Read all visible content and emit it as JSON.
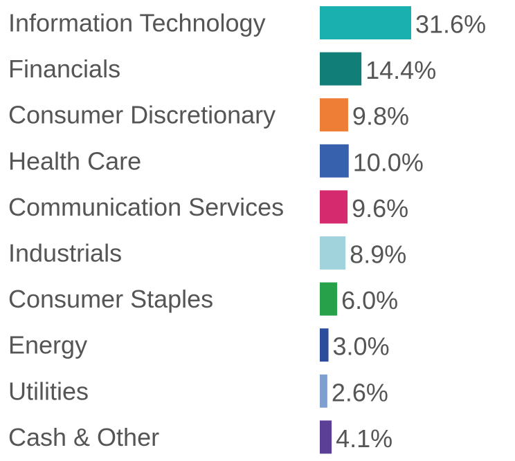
{
  "chart_data": {
    "type": "bar",
    "orientation": "horizontal",
    "title": "",
    "xlabel": "",
    "ylabel": "",
    "grid": false,
    "legend": "none",
    "xlim": [
      0,
      31.6
    ],
    "categories": [
      "Information Technology",
      "Financials",
      "Consumer Discretionary",
      "Health Care",
      "Communication Services",
      "Industrials",
      "Consumer Staples",
      "Energy",
      "Utilities",
      "Cash & Other"
    ],
    "values": [
      31.6,
      14.4,
      9.8,
      10.0,
      9.6,
      8.9,
      6.0,
      3.0,
      2.6,
      4.1
    ],
    "value_labels": [
      "31.6%",
      "14.4%",
      "9.8%",
      "10.0%",
      "9.6%",
      "8.9%",
      "6.0%",
      "3.0%",
      "2.6%",
      "4.1%"
    ],
    "colors": [
      "#1ab0b0",
      "#127e78",
      "#ee7d36",
      "#3761ac",
      "#d52a6e",
      "#a1d3dd",
      "#27a14a",
      "#2b4d9b",
      "#7f9fd1",
      "#5b3e96"
    ]
  }
}
